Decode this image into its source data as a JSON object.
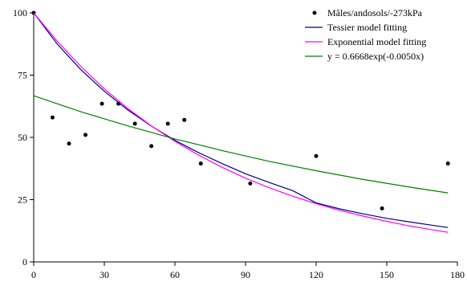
{
  "chart_data": {
    "type": "scatter",
    "title": "",
    "xlabel": "",
    "ylabel": "",
    "xlim": [
      0,
      180
    ],
    "ylim": [
      0,
      100
    ],
    "xticks": [
      0,
      30,
      60,
      90,
      120,
      150,
      180
    ],
    "yticks": [
      0,
      25,
      50,
      75,
      100
    ],
    "grid": false,
    "legend_position": "top-right",
    "series": [
      {
        "name": "Mâles/andosols/-273kPa",
        "kind": "scatter",
        "color": "#000000",
        "x": [
          0,
          8,
          15,
          22,
          29,
          36,
          43,
          50,
          57,
          64,
          71,
          92,
          120,
          148,
          176
        ],
        "y": [
          100,
          58,
          47.5,
          51,
          63.5,
          63.5,
          55.5,
          46.5,
          55.5,
          57,
          39.5,
          31.5,
          42.5,
          21.5,
          39.5
        ]
      },
      {
        "name": "Tessier model fitting",
        "kind": "line",
        "color": "#000080",
        "x": [
          0,
          10,
          20,
          30,
          40,
          50,
          60,
          70,
          80,
          90,
          100,
          110,
          120,
          130,
          140,
          150,
          160,
          170,
          176
        ],
        "y": [
          100,
          87.5,
          77.2,
          68.5,
          61,
          54.5,
          48.8,
          43.9,
          39.5,
          35.4,
          31.9,
          28.6,
          23.7,
          21.3,
          19.3,
          17.5,
          16,
          14.6,
          13.8
        ]
      },
      {
        "name": "Exponential model fitting",
        "kind": "line",
        "color": "#ff00ff",
        "x": [
          0,
          10,
          20,
          30,
          40,
          50,
          60,
          70,
          80,
          90,
          100,
          110,
          120,
          130,
          140,
          150,
          160,
          170,
          176
        ],
        "y": [
          100,
          88.6,
          78.5,
          69.5,
          61.6,
          54.6,
          48.4,
          42.9,
          38,
          33.6,
          29.8,
          26.4,
          23.4,
          20.7,
          18.4,
          16.3,
          14.4,
          12.8,
          11.9
        ]
      },
      {
        "name": "y = 0.6668exp(-0.0050x)",
        "kind": "line",
        "color": "#008000",
        "x": [
          0,
          20,
          40,
          60,
          80,
          100,
          120,
          140,
          160,
          176
        ],
        "y": [
          66.7,
          60.3,
          54.6,
          49.4,
          44.7,
          40.4,
          36.6,
          33.1,
          30,
          27.7
        ]
      }
    ]
  }
}
